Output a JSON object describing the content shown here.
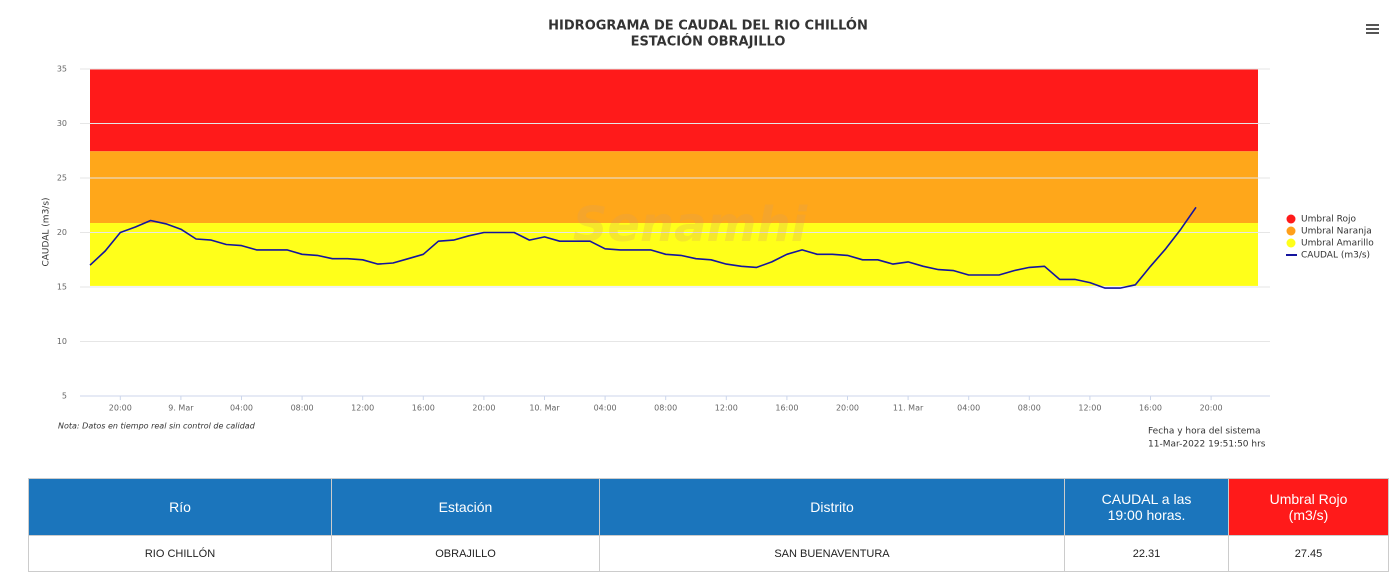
{
  "chart_data": {
    "type": "line",
    "title": "HIDROGRAMA DE CAUDAL DEL RIO CHILLÓN",
    "subtitle": "ESTACIÓN OBRAJILLO",
    "y_label": "CAUDAL (m3/s)",
    "watermark": "Senamhi",
    "ylim": [
      5,
      35
    ],
    "yticks": [
      5,
      10,
      15,
      20,
      25,
      30,
      35
    ],
    "grid": true,
    "legend": "right",
    "categories": [
      null,
      null,
      "20:00",
      null,
      null,
      null,
      "9. Mar",
      null,
      null,
      null,
      "04:00",
      null,
      null,
      null,
      "08:00",
      null,
      null,
      null,
      "12:00",
      null,
      null,
      null,
      "16:00",
      null,
      null,
      null,
      "20:00",
      null,
      null,
      null,
      "10. Mar",
      null,
      null,
      null,
      "04:00",
      null,
      null,
      null,
      "08:00",
      null,
      null,
      null,
      "12:00",
      null,
      null,
      null,
      "16:00",
      null,
      null,
      null,
      "20:00",
      null,
      null,
      null,
      "11. Mar",
      null,
      null,
      null,
      "04:00",
      null,
      null,
      null,
      "08:00",
      null,
      null,
      null,
      "12:00",
      null,
      null,
      null,
      "16:00",
      null,
      null,
      null,
      "20:00",
      null,
      null,
      null
    ],
    "bands": [
      {
        "name": "Umbral Rojo",
        "color": "#ff1a1a",
        "from": 27.45,
        "to": 35
      },
      {
        "name": "Umbral Naranja",
        "color": "#ffa71a",
        "from": 20.87,
        "to": 27.45
      },
      {
        "name": "Umbral Amarillo",
        "color": "#ffff1a",
        "from": 15.1,
        "to": 20.87
      }
    ],
    "series": [
      {
        "name": "CAUDAL (m3/s)",
        "color": "#14149e",
        "values": [
          17.0,
          18.3,
          20.0,
          20.5,
          21.1,
          20.8,
          20.3,
          19.4,
          19.3,
          18.9,
          18.8,
          18.4,
          18.4,
          18.4,
          18.0,
          17.9,
          17.6,
          17.6,
          17.5,
          17.1,
          17.2,
          17.6,
          18.0,
          19.2,
          19.3,
          19.7,
          20.0,
          20.0,
          20.0,
          19.3,
          19.6,
          19.2,
          19.2,
          19.2,
          18.5,
          18.4,
          18.4,
          18.4,
          18.0,
          17.9,
          17.6,
          17.5,
          17.1,
          16.9,
          16.8,
          17.3,
          18.0,
          18.4,
          18.0,
          18.0,
          17.9,
          17.5,
          17.5,
          17.1,
          17.3,
          16.9,
          16.6,
          16.5,
          16.1,
          16.1,
          16.1,
          16.5,
          16.8,
          16.9,
          15.7,
          15.7,
          15.4,
          14.9,
          14.9,
          15.2,
          16.9,
          18.5,
          20.3,
          22.31,
          null,
          null,
          null,
          null
        ]
      }
    ]
  },
  "note": "Nota: Datos en tiempo real sin control de calidad",
  "system_time": {
    "label": "Fecha y hora del sistema",
    "value": "11-Mar-2022 19:51:50 hrs"
  },
  "table": {
    "header": [
      "Río",
      "Estación",
      "Distrito",
      "CAUDAL a las 19:00 horas.",
      "Umbral Rojo (m3/s)"
    ],
    "rows": [
      [
        "RIO CHILLÓN",
        "OBRAJILLO",
        "SAN BUENAVENTURA",
        "22.31",
        "27.45"
      ]
    ]
  }
}
